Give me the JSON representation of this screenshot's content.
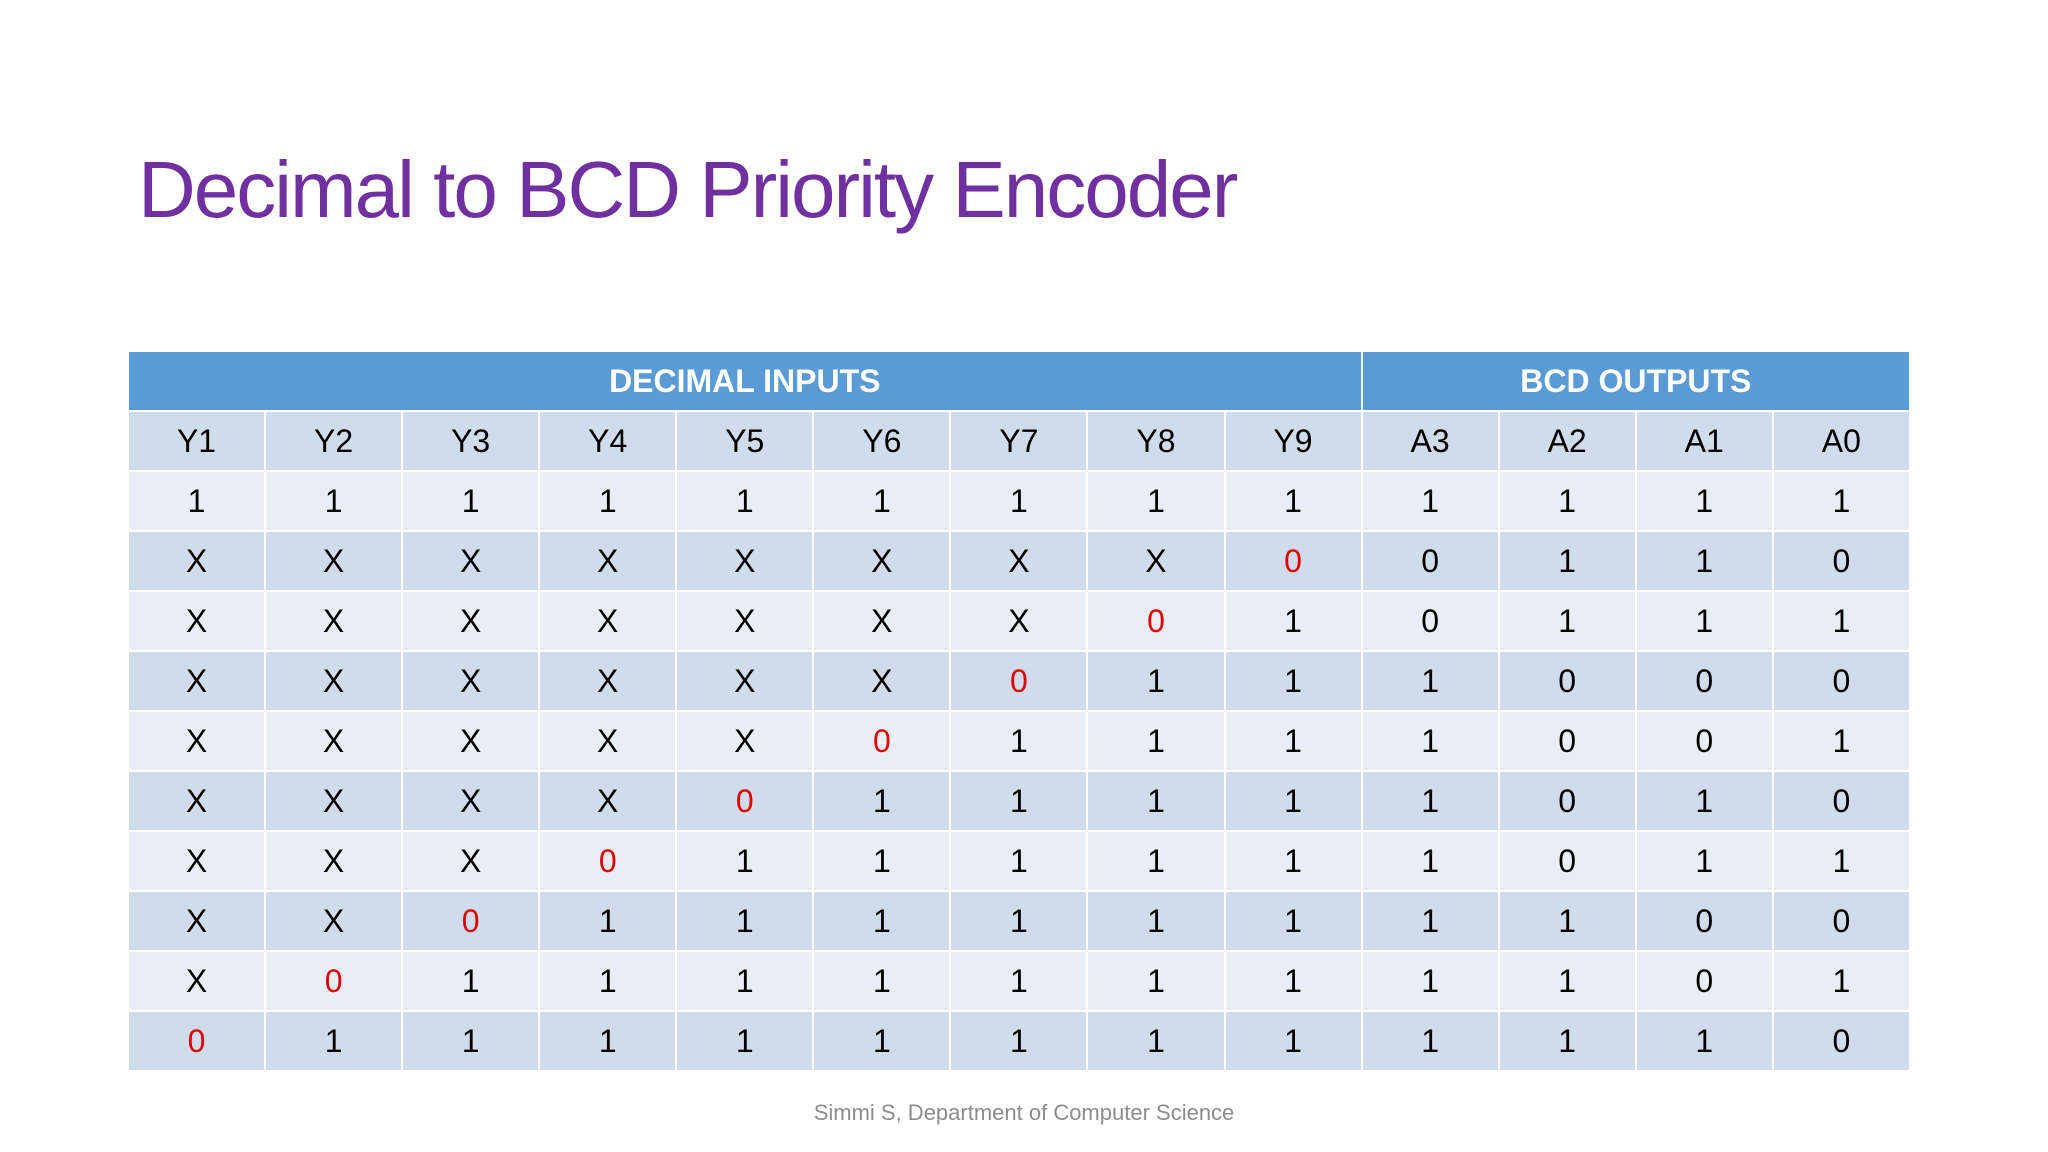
{
  "slide": {
    "title": "Decimal to BCD Priority Encoder",
    "footer": "Simmi S, Department of Computer Science"
  },
  "table": {
    "groups": [
      {
        "label": "DECIMAL INPUTS",
        "span": 9
      },
      {
        "label": "BCD OUTPUTS",
        "span": 4
      }
    ],
    "columns": [
      "Y1",
      "Y2",
      "Y3",
      "Y4",
      "Y5",
      "Y6",
      "Y7",
      "Y8",
      "Y9",
      "A3",
      "A2",
      "A1",
      "A0"
    ],
    "rows": [
      [
        "1",
        "1",
        "1",
        "1",
        "1",
        "1",
        "1",
        "1",
        "1",
        "1",
        "1",
        "1",
        "1"
      ],
      [
        "X",
        "X",
        "X",
        "X",
        "X",
        "X",
        "X",
        "X",
        "0",
        "0",
        "1",
        "1",
        "0"
      ],
      [
        "X",
        "X",
        "X",
        "X",
        "X",
        "X",
        "X",
        "0",
        "1",
        "0",
        "1",
        "1",
        "1"
      ],
      [
        "X",
        "X",
        "X",
        "X",
        "X",
        "X",
        "0",
        "1",
        "1",
        "1",
        "0",
        "0",
        "0"
      ],
      [
        "X",
        "X",
        "X",
        "X",
        "X",
        "0",
        "1",
        "1",
        "1",
        "1",
        "0",
        "0",
        "1"
      ],
      [
        "X",
        "X",
        "X",
        "X",
        "0",
        "1",
        "1",
        "1",
        "1",
        "1",
        "0",
        "1",
        "0"
      ],
      [
        "X",
        "X",
        "X",
        "0",
        "1",
        "1",
        "1",
        "1",
        "1",
        "1",
        "0",
        "1",
        "1"
      ],
      [
        "X",
        "X",
        "0",
        "1",
        "1",
        "1",
        "1",
        "1",
        "1",
        "1",
        "1",
        "0",
        "0"
      ],
      [
        "X",
        "0",
        "1",
        "1",
        "1",
        "1",
        "1",
        "1",
        "1",
        "1",
        "1",
        "0",
        "1"
      ],
      [
        "0",
        "1",
        "1",
        "1",
        "1",
        "1",
        "1",
        "1",
        "1",
        "1",
        "1",
        "1",
        "0"
      ]
    ],
    "highlight_color": "#e00000",
    "highlight_cells": [
      [
        1,
        8
      ],
      [
        2,
        7
      ],
      [
        3,
        6
      ],
      [
        4,
        5
      ],
      [
        5,
        4
      ],
      [
        6,
        3
      ],
      [
        7,
        2
      ],
      [
        8,
        1
      ],
      [
        9,
        0
      ]
    ]
  },
  "colors": {
    "title": "#7030a0",
    "group_header": "#5b9bd5",
    "row_dark": "#d0dcec",
    "row_light": "#e9eef6"
  }
}
